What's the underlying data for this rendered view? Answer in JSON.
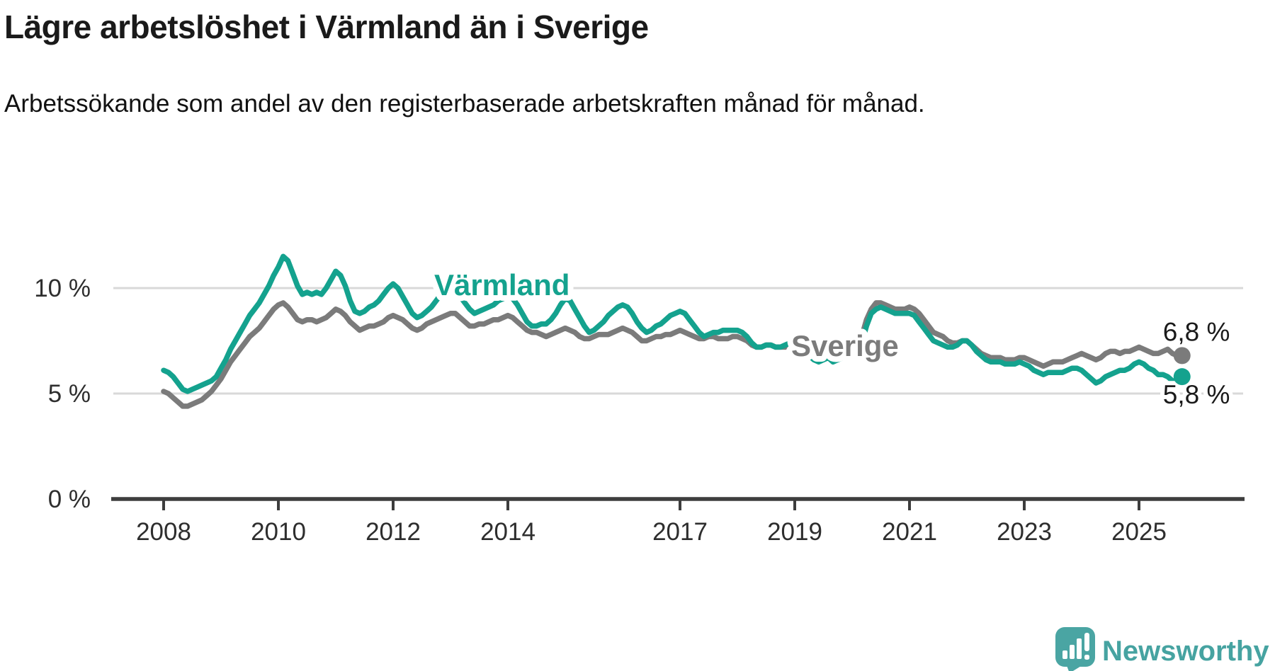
{
  "header": {
    "title": "Lägre arbetslöshet i Värmland än i Sverige",
    "subtitle": "Arbetssökande som andel av den registerbaserade arbetskraften månad för månad."
  },
  "chart_data": {
    "type": "line",
    "unit": "%",
    "frequency": "monthly",
    "x_start": "2008-01",
    "x_end": "2025-10",
    "ylim": [
      0,
      12
    ],
    "grid": "horizontal-only",
    "x_tick_years": [
      2008,
      2010,
      2012,
      2014,
      2017,
      2019,
      2021,
      2023,
      2025
    ],
    "y_ticks": [
      {
        "value": 10,
        "label": "10 %"
      },
      {
        "value": 5,
        "label": "5 %"
      },
      {
        "value": 0,
        "label": "0 %"
      }
    ],
    "series": [
      {
        "name": "Värmland",
        "color": "#14a28e",
        "end_label": "5,8 %",
        "end_value": 5.8,
        "values": [
          6.1,
          6.0,
          5.8,
          5.5,
          5.2,
          5.1,
          5.2,
          5.3,
          5.4,
          5.5,
          5.6,
          5.8,
          6.2,
          6.6,
          7.1,
          7.5,
          7.9,
          8.3,
          8.7,
          9.0,
          9.3,
          9.7,
          10.1,
          10.6,
          11.0,
          11.5,
          11.3,
          10.7,
          10.1,
          9.7,
          9.8,
          9.7,
          9.8,
          9.7,
          10.0,
          10.4,
          10.8,
          10.6,
          10.1,
          9.4,
          8.9,
          8.8,
          8.9,
          9.1,
          9.2,
          9.4,
          9.7,
          10.0,
          10.2,
          10.0,
          9.6,
          9.2,
          8.8,
          8.6,
          8.7,
          8.9,
          9.1,
          9.4,
          9.7,
          9.9,
          10.0,
          9.9,
          9.6,
          9.3,
          9.0,
          8.8,
          8.9,
          9.0,
          9.1,
          9.2,
          9.4,
          9.5,
          9.6,
          9.5,
          9.2,
          8.8,
          8.4,
          8.2,
          8.2,
          8.3,
          8.3,
          8.5,
          8.8,
          9.2,
          9.5,
          9.4,
          9.0,
          8.6,
          8.2,
          7.9,
          8.0,
          8.2,
          8.4,
          8.7,
          8.9,
          9.1,
          9.2,
          9.1,
          8.8,
          8.4,
          8.1,
          7.9,
          8.0,
          8.2,
          8.3,
          8.5,
          8.7,
          8.8,
          8.9,
          8.8,
          8.5,
          8.2,
          7.9,
          7.7,
          7.8,
          7.9,
          7.9,
          8.0,
          8.0,
          8.0,
          8.0,
          7.9,
          7.7,
          7.4,
          7.2,
          7.2,
          7.3,
          7.3,
          7.2,
          7.2,
          7.3,
          7.4,
          7.4,
          7.3,
          7.1,
          6.8,
          6.6,
          6.5,
          6.6,
          6.7,
          6.5,
          6.6,
          6.7,
          6.8,
          7.0,
          7.1,
          7.4,
          8.2,
          8.8,
          9.0,
          9.1,
          9.0,
          8.9,
          8.8,
          8.8,
          8.8,
          8.8,
          8.7,
          8.4,
          8.1,
          7.8,
          7.5,
          7.4,
          7.3,
          7.2,
          7.2,
          7.3,
          7.5,
          7.5,
          7.3,
          7.0,
          6.8,
          6.6,
          6.5,
          6.5,
          6.5,
          6.4,
          6.4,
          6.4,
          6.5,
          6.4,
          6.3,
          6.1,
          6.0,
          5.9,
          6.0,
          6.0,
          6.0,
          6.0,
          6.1,
          6.2,
          6.2,
          6.1,
          5.9,
          5.7,
          5.5,
          5.6,
          5.8,
          5.9,
          6.0,
          6.1,
          6.1,
          6.2,
          6.4,
          6.5,
          6.4,
          6.2,
          6.1,
          5.9,
          5.9,
          5.8,
          5.6,
          5.6,
          5.8
        ]
      },
      {
        "name": "Sverige",
        "color": "#7b7b7b",
        "end_label": "6,8 %",
        "end_value": 6.8,
        "values": [
          5.1,
          5.0,
          4.8,
          4.6,
          4.4,
          4.4,
          4.5,
          4.6,
          4.7,
          4.9,
          5.1,
          5.4,
          5.7,
          6.1,
          6.5,
          6.8,
          7.1,
          7.4,
          7.7,
          7.9,
          8.1,
          8.4,
          8.7,
          9.0,
          9.2,
          9.3,
          9.1,
          8.8,
          8.5,
          8.4,
          8.5,
          8.5,
          8.4,
          8.5,
          8.6,
          8.8,
          9.0,
          8.9,
          8.7,
          8.4,
          8.2,
          8.0,
          8.1,
          8.2,
          8.2,
          8.3,
          8.4,
          8.6,
          8.7,
          8.6,
          8.5,
          8.3,
          8.1,
          8.0,
          8.1,
          8.3,
          8.4,
          8.5,
          8.6,
          8.7,
          8.8,
          8.8,
          8.6,
          8.4,
          8.2,
          8.2,
          8.3,
          8.3,
          8.4,
          8.5,
          8.5,
          8.6,
          8.7,
          8.6,
          8.4,
          8.2,
          8.0,
          7.9,
          7.9,
          7.8,
          7.7,
          7.8,
          7.9,
          8.0,
          8.1,
          8.0,
          7.9,
          7.7,
          7.6,
          7.6,
          7.7,
          7.8,
          7.8,
          7.8,
          7.9,
          8.0,
          8.1,
          8.0,
          7.9,
          7.7,
          7.5,
          7.5,
          7.6,
          7.7,
          7.7,
          7.8,
          7.8,
          7.9,
          8.0,
          7.9,
          7.8,
          7.7,
          7.6,
          7.6,
          7.7,
          7.7,
          7.6,
          7.6,
          7.6,
          7.7,
          7.7,
          7.6,
          7.5,
          7.3,
          7.2,
          7.2,
          7.3,
          7.3,
          7.2,
          7.2,
          7.2,
          7.3,
          7.3,
          7.2,
          7.1,
          7.0,
          6.9,
          7.0,
          7.1,
          7.1,
          7.0,
          7.1,
          7.2,
          7.3,
          7.4,
          7.4,
          7.7,
          8.5,
          9.0,
          9.3,
          9.3,
          9.2,
          9.1,
          9.0,
          9.0,
          9.0,
          9.1,
          9.0,
          8.8,
          8.5,
          8.2,
          7.9,
          7.8,
          7.7,
          7.5,
          7.4,
          7.4,
          7.5,
          7.5,
          7.3,
          7.1,
          6.9,
          6.8,
          6.7,
          6.7,
          6.7,
          6.6,
          6.6,
          6.6,
          6.7,
          6.7,
          6.6,
          6.5,
          6.4,
          6.3,
          6.4,
          6.5,
          6.5,
          6.5,
          6.6,
          6.7,
          6.8,
          6.9,
          6.8,
          6.7,
          6.6,
          6.7,
          6.9,
          7.0,
          7.0,
          6.9,
          7.0,
          7.0,
          7.1,
          7.2,
          7.1,
          7.0,
          6.9,
          6.9,
          7.0,
          7.1,
          6.9,
          6.8,
          6.8
        ]
      }
    ],
    "colors": {
      "axis": "#3d3d3d",
      "grid": "#d9d9d9",
      "tick_text": "#2e2e2e",
      "end_label_text": "#1a1a1a"
    }
  },
  "branding": {
    "logo_text": "Newsworthy",
    "logo_color": "#4aa5a3",
    "logo_icon": "bar-chart-exclamation-bubble-icon"
  }
}
